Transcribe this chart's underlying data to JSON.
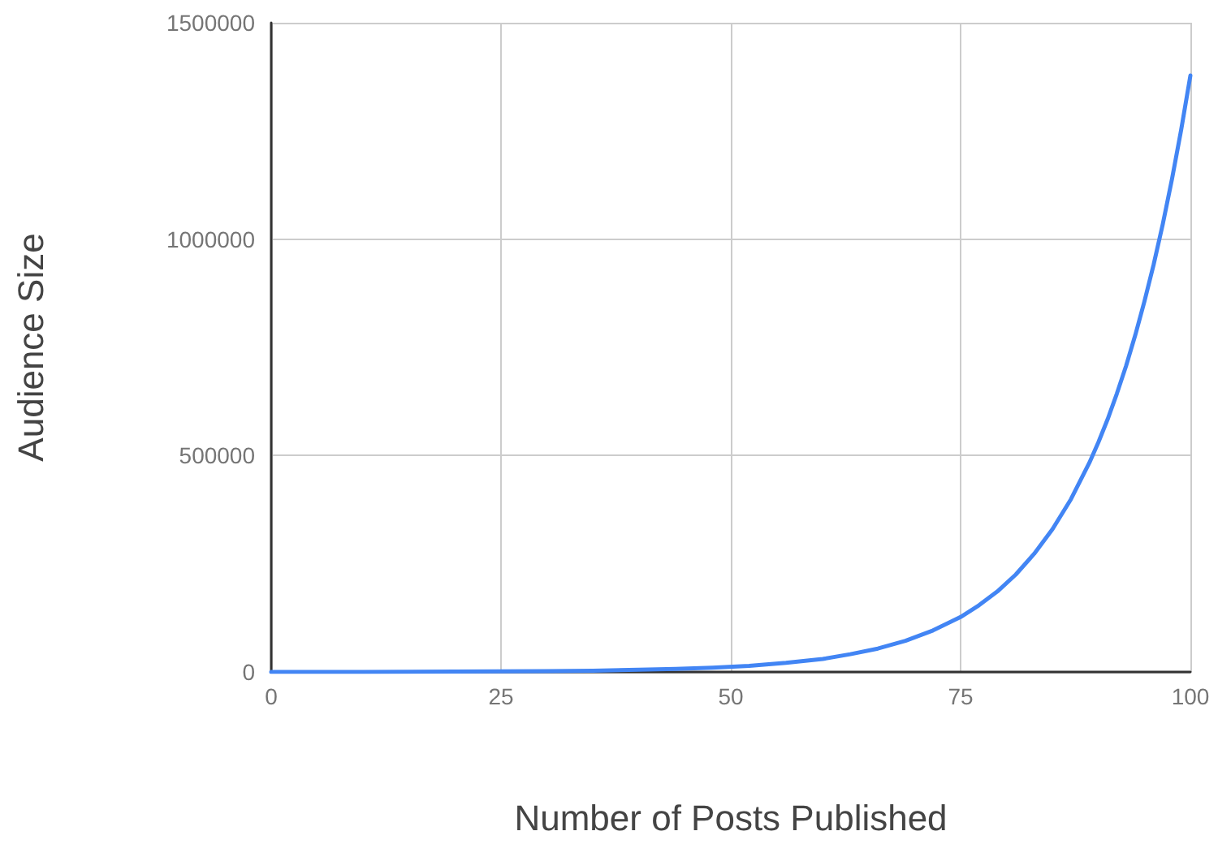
{
  "chart_data": {
    "type": "line",
    "xlabel": "Number of Posts Published",
    "ylabel": "Audience Size",
    "x": [
      0,
      10,
      20,
      30,
      35,
      40,
      44,
      48,
      52,
      56,
      60,
      63,
      66,
      69,
      72,
      75,
      77,
      79,
      81,
      83,
      85,
      87,
      89,
      90,
      91,
      92,
      93,
      94,
      95,
      96,
      97,
      98,
      99,
      100
    ],
    "series": [
      {
        "color": "#4285f4",
        "values": [
          0,
          0,
          1000,
          2000,
          3000,
          5000,
          7000,
          10000,
          14000,
          21000,
          30000,
          41000,
          54000,
          72000,
          96000,
          127000,
          154000,
          186000,
          225000,
          273000,
          330000,
          399000,
          483000,
          531000,
          584000,
          643000,
          707000,
          778000,
          856000,
          941000,
          1035000,
          1139000,
          1253000,
          1378000
        ]
      }
    ],
    "xlim": [
      0,
      100
    ],
    "ylim": [
      0,
      1500000
    ],
    "xticks": [
      0,
      25,
      50,
      75,
      100
    ],
    "yticks": [
      0,
      500000,
      1000000,
      1500000
    ],
    "grid": true
  }
}
